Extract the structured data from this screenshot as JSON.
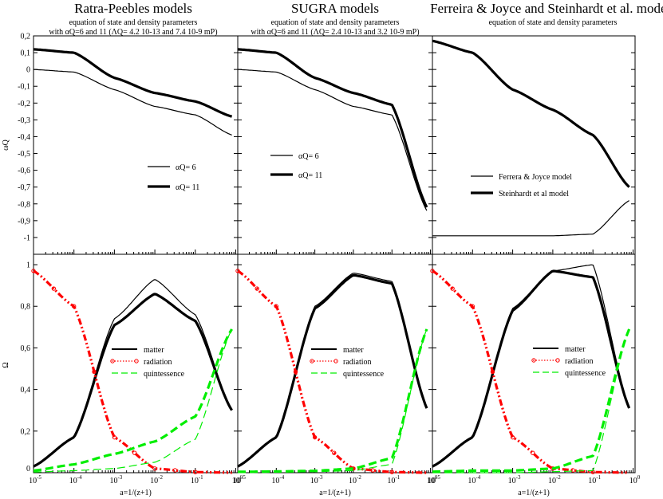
{
  "colors": {
    "matter": "#000000",
    "radiation": "#ff0000",
    "quintessence": "#00ee00"
  },
  "chart_data": {
    "type": "line",
    "x_scale": "log",
    "x_label": "a=1/(z+1)",
    "x_ticks": [
      "10-5",
      "10-4",
      "10-3",
      "10-2",
      "10-1",
      "100"
    ],
    "top_ylabel": "ωQ",
    "top_ylim": [
      -1.1,
      0.2
    ],
    "top_yticks": [
      "0,2",
      "0,1",
      "0",
      "-0,1",
      "-0,2",
      "-0,3",
      "-0,4",
      "-0,5",
      "-0,6",
      "-0,7",
      "-0,8",
      "-0,9",
      "-1"
    ],
    "bottom_ylabel": "Ω",
    "bottom_ylim": [
      0,
      1.05
    ],
    "bottom_yticks": [
      "0",
      "0,2",
      "0,4",
      "0,6",
      "0,8",
      "1"
    ],
    "x": [
      1e-05,
      0.0001,
      0.001,
      0.01,
      0.1,
      0.8
    ],
    "panels": [
      {
        "title": "Ratra-Peebles models",
        "subtitle_line1": "equation of state and density parameters",
        "subtitle_line2": "with αQ=6 and 11 (ΛQ= 4.2 10-13 and 7.4 10-9 mP)",
        "eos_series": [
          {
            "name": "αQ= 6",
            "width": "thin",
            "values": [
              0.0,
              -0.015,
              -0.12,
              -0.22,
              -0.27,
              -0.39
            ]
          },
          {
            "name": "αQ= 11",
            "width": "thick",
            "values": [
              0.12,
              0.1,
              -0.05,
              -0.14,
              -0.19,
              -0.28
            ]
          }
        ],
        "density_legend": [
          "matter",
          "radiation",
          "quintessence"
        ],
        "density_series": [
          {
            "name": "matter (αQ= 6)",
            "component": "matter",
            "width": "thin",
            "values": [
              0.03,
              0.17,
              0.74,
              0.93,
              0.76,
              0.3
            ]
          },
          {
            "name": "matter (αQ= 11)",
            "component": "matter",
            "width": "thick",
            "values": [
              0.03,
              0.17,
              0.71,
              0.86,
              0.73,
              0.3
            ]
          },
          {
            "name": "radiation",
            "component": "radiation",
            "width": "thick",
            "values": [
              0.97,
              0.8,
              0.17,
              0.02,
              0.003,
              0.0
            ]
          },
          {
            "name": "quintessence (αQ= 6)",
            "component": "quintessence",
            "width": "thin",
            "values": [
              0.003,
              0.01,
              0.02,
              0.05,
              0.16,
              0.69
            ]
          },
          {
            "name": "quintessence (αQ= 11)",
            "component": "quintessence",
            "width": "thick",
            "values": [
              0.01,
              0.04,
              0.09,
              0.15,
              0.27,
              0.69
            ]
          }
        ]
      },
      {
        "title": "SUGRA models",
        "subtitle_line1": "equation of state and density parameters",
        "subtitle_line2": "with αQ=6 and 11 (ΛQ= 2.4 10-13 and 3.2 10-9 mP)",
        "eos_series": [
          {
            "name": "αQ= 6",
            "width": "thin",
            "values": [
              0.0,
              -0.015,
              -0.12,
              -0.22,
              -0.27,
              -0.84
            ]
          },
          {
            "name": "αQ= 11",
            "width": "thick",
            "values": [
              0.12,
              0.1,
              -0.05,
              -0.14,
              -0.21,
              -0.82
            ]
          }
        ],
        "density_legend": [
          "matter",
          "radiation",
          "quintessence"
        ],
        "density_series": [
          {
            "name": "matter (αQ= 6)",
            "component": "matter",
            "width": "thin",
            "values": [
              0.03,
              0.17,
              0.8,
              0.96,
              0.92,
              0.31
            ]
          },
          {
            "name": "matter (αQ= 11)",
            "component": "matter",
            "width": "thick",
            "values": [
              0.03,
              0.17,
              0.79,
              0.95,
              0.91,
              0.31
            ]
          },
          {
            "name": "radiation",
            "component": "radiation",
            "width": "thick",
            "values": [
              0.97,
              0.8,
              0.17,
              0.02,
              0.003,
              0.0
            ]
          },
          {
            "name": "quintessence (αQ= 6)",
            "component": "quintessence",
            "width": "thin",
            "values": [
              0.002,
              0.003,
              0.005,
              0.01,
              0.04,
              0.69
            ]
          },
          {
            "name": "quintessence (αQ= 11)",
            "component": "quintessence",
            "width": "thick",
            "values": [
              0.004,
              0.006,
              0.009,
              0.02,
              0.07,
              0.69
            ]
          }
        ]
      },
      {
        "title": "Ferreira & Joyce  and Steinhardt et al. models",
        "subtitle_line1": "equation of state and density parameters",
        "subtitle_line2": "",
        "eos_series": [
          {
            "name": "Ferrera & Joyce model",
            "width": "thin",
            "values": [
              -0.99,
              -0.99,
              -0.99,
              -0.99,
              -0.98,
              -0.78
            ]
          },
          {
            "name": "Steinhardt et al model",
            "width": "thick",
            "values": [
              0.17,
              0.1,
              -0.12,
              -0.24,
              -0.39,
              -0.7
            ]
          }
        ],
        "density_legend": [
          "matter",
          "radiation",
          "quintessence"
        ],
        "density_series": [
          {
            "name": "matter (Ferrera & Joyce)",
            "component": "matter",
            "width": "thin",
            "values": [
              0.03,
              0.17,
              0.79,
              0.97,
              1.0,
              0.31
            ]
          },
          {
            "name": "matter (Steinhardt et al)",
            "component": "matter",
            "width": "thick",
            "values": [
              0.03,
              0.17,
              0.78,
              0.97,
              0.94,
              0.31
            ]
          },
          {
            "name": "radiation",
            "component": "radiation",
            "width": "thick",
            "values": [
              0.97,
              0.8,
              0.17,
              0.02,
              0.003,
              0.0
            ]
          },
          {
            "name": "quintessence (Ferrera & Joyce)",
            "component": "quintessence",
            "width": "thin",
            "values": [
              0.0,
              0.0,
              0.0,
              0.005,
              0.01,
              0.69
            ]
          },
          {
            "name": "quintessence (Steinhardt et al)",
            "component": "quintessence",
            "width": "thick",
            "values": [
              0.005,
              0.01,
              0.01,
              0.02,
              0.08,
              0.69
            ]
          }
        ]
      }
    ]
  }
}
